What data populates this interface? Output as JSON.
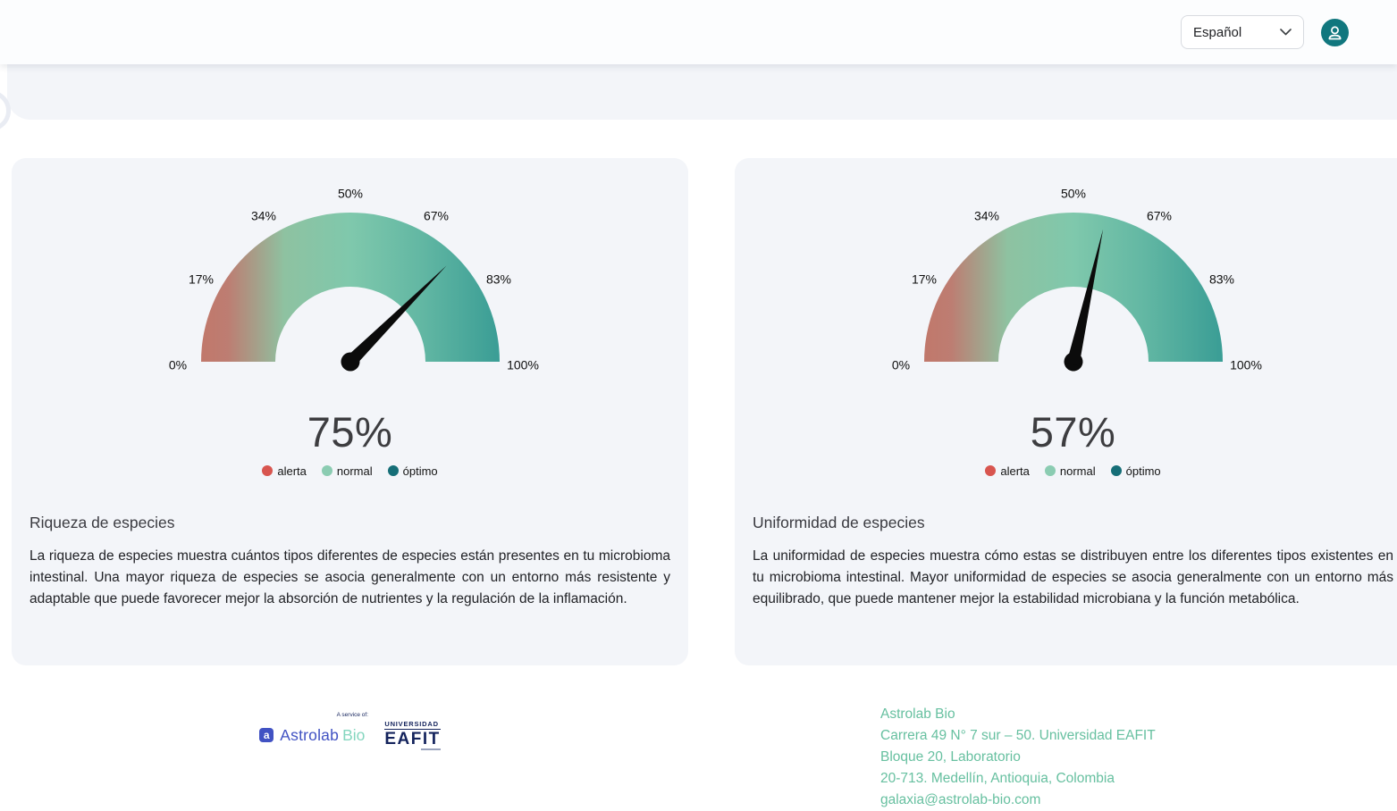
{
  "header": {
    "language_selector": {
      "value": "Español"
    },
    "avatar_icon": "user"
  },
  "cards": [
    {
      "title": "Riqueza de especies",
      "description": "La riqueza de especies muestra cuántos tipos diferentes de especies están presentes en tu microbioma intestinal. Una mayor riqueza de especies se asocia generalmente con un entorno más resistente y adaptable que puede favorecer mejor la absorción de nutrientes y la regulación de la inflamación.",
      "gauge": {
        "value": 75,
        "display_value": "75%",
        "ticks": [
          "0%",
          "17%",
          "34%",
          "50%",
          "67%",
          "83%",
          "100%"
        ],
        "legend": [
          {
            "label": "alerta",
            "color": "#d8554f"
          },
          {
            "label": "normal",
            "color": "#8bccb2"
          },
          {
            "label": "óptimo",
            "color": "#156e77"
          }
        ]
      }
    },
    {
      "title": "Uniformidad de especies",
      "description": "La uniformidad de especies muestra cómo estas se distribuyen entre los diferentes tipos existentes en tu microbioma intestinal. Mayor uniformidad de especies se asocia generalmente con un entorno más equilibrado, que puede mantener mejor la estabilidad microbiana y la función metabólica.",
      "gauge": {
        "value": 57,
        "display_value": "57%",
        "ticks": [
          "0%",
          "17%",
          "34%",
          "50%",
          "67%",
          "83%",
          "100%"
        ],
        "legend": [
          {
            "label": "alerta",
            "color": "#d8554f"
          },
          {
            "label": "normal",
            "color": "#8bccb2"
          },
          {
            "label": "óptimo",
            "color": "#156e77"
          }
        ]
      }
    }
  ],
  "footer": {
    "service_note": "A service of:",
    "astrolab_logo": {
      "mark": "a",
      "name": "Astrolab",
      "suffix": "Bio"
    },
    "eafit_logo": {
      "top": "UNIVERSIDAD",
      "name": "EAFIT"
    },
    "contact_lines": [
      "Astrolab Bio",
      "Carrera 49 N° 7 sur – 50. Universidad EAFIT",
      "Bloque 20, Laboratorio",
      "20-713. Medellín, Antioquia, Colombia",
      "galaxia@astrolab-bio.com"
    ]
  },
  "theme": {
    "gauge_gradient_0": "#c1786b",
    "gauge_gradient_0b": "#bd7d72",
    "gauge_gradient_1": "#8ec2a1",
    "gauge_gradient_2": "#7fc8ac",
    "gauge_gradient_3": "#62b7a3",
    "gauge_gradient_4": "#3a9d95",
    "accent_teal": "#11777e",
    "contact_green": "#67c0a0",
    "card_bg": "#f3f5f9"
  },
  "chart_data": [
    {
      "type": "gauge",
      "title": "Riqueza de especies",
      "value": 75,
      "min": 0,
      "max": 100,
      "tick_values": [
        0,
        17,
        34,
        50,
        67,
        83,
        100
      ],
      "legend": [
        "alerta",
        "normal",
        "óptimo"
      ],
      "gradient": [
        "#c1786b",
        "#7fc8ac",
        "#3a9d95"
      ]
    },
    {
      "type": "gauge",
      "title": "Uniformidad de especies",
      "value": 57,
      "min": 0,
      "max": 100,
      "tick_values": [
        0,
        17,
        34,
        50,
        67,
        83,
        100
      ],
      "legend": [
        "alerta",
        "normal",
        "óptimo"
      ],
      "gradient": [
        "#c1786b",
        "#7fc8ac",
        "#3a9d95"
      ]
    }
  ]
}
